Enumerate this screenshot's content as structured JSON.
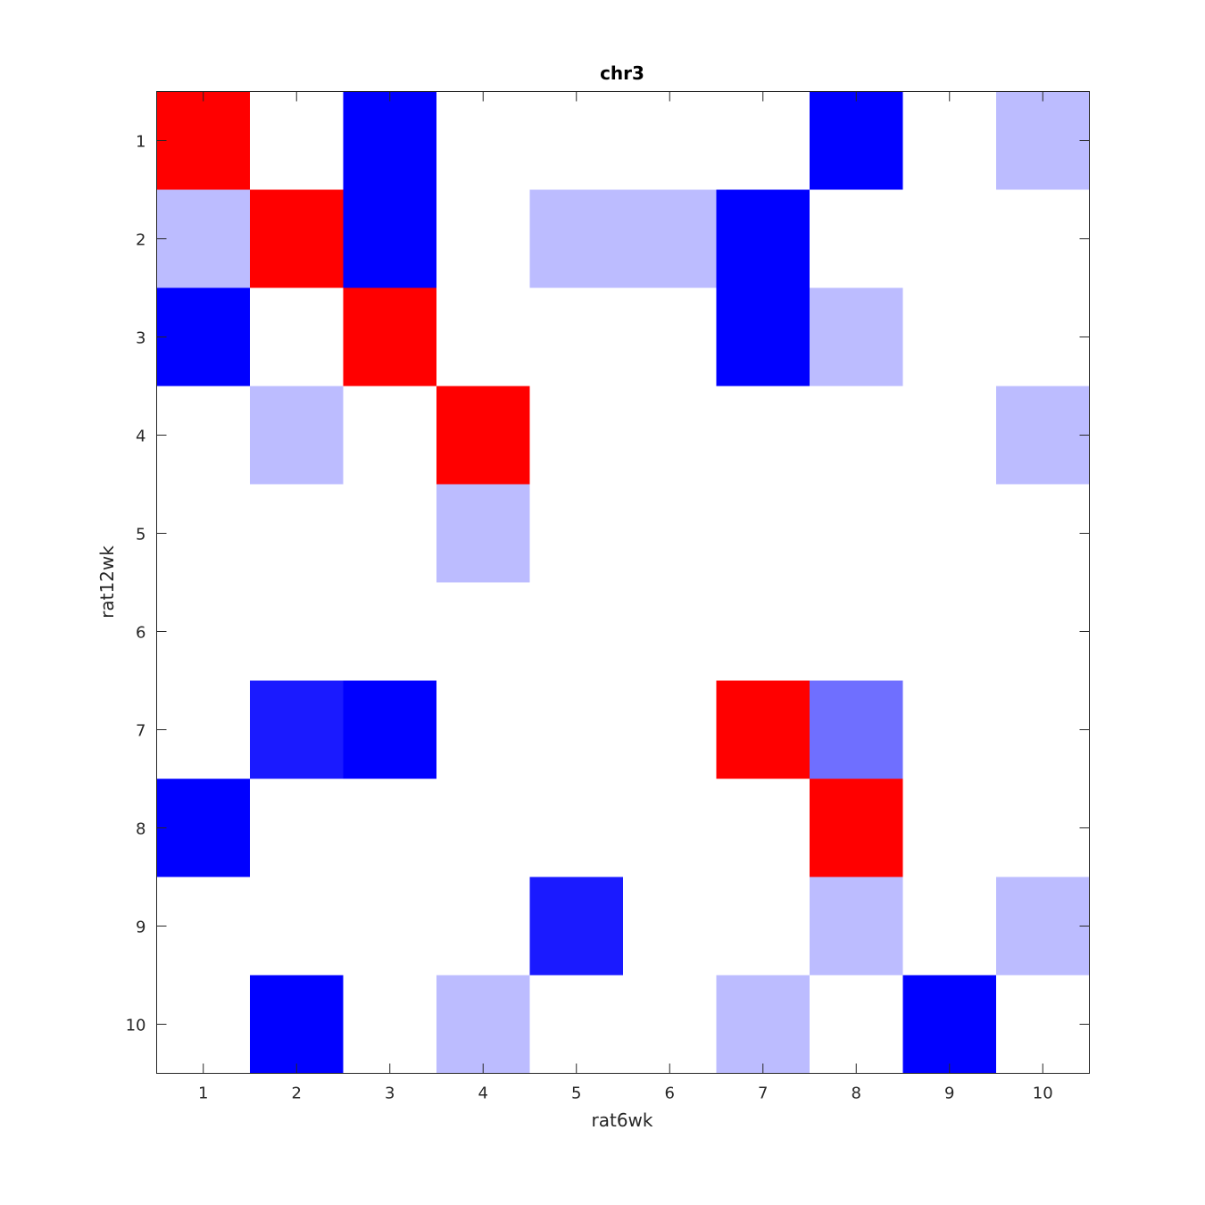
{
  "chart_data": {
    "type": "heatmap",
    "title": "chr3",
    "xlabel": "rat6wk",
    "ylabel": "rat12wk",
    "x_categories": [
      "1",
      "2",
      "3",
      "4",
      "5",
      "6",
      "7",
      "8",
      "9",
      "10"
    ],
    "y_categories": [
      "1",
      "2",
      "3",
      "4",
      "5",
      "6",
      "7",
      "8",
      "9",
      "10"
    ],
    "colors": {
      "W": "#ffffff",
      "R": "#ff0000",
      "B": "#0000ff",
      "B2": "#1a1aff",
      "M": "#6f6fff",
      "L": "#bcbcff"
    },
    "cells": [
      [
        "R",
        "W",
        "B",
        "W",
        "W",
        "W",
        "W",
        "B",
        "W",
        "L"
      ],
      [
        "L",
        "R",
        "B",
        "W",
        "L",
        "L",
        "B",
        "W",
        "W",
        "W"
      ],
      [
        "B",
        "W",
        "R",
        "W",
        "W",
        "W",
        "B",
        "L",
        "W",
        "W"
      ],
      [
        "W",
        "L",
        "W",
        "R",
        "W",
        "W",
        "W",
        "W",
        "W",
        "L"
      ],
      [
        "W",
        "W",
        "W",
        "L",
        "W",
        "W",
        "W",
        "W",
        "W",
        "W"
      ],
      [
        "W",
        "W",
        "W",
        "W",
        "W",
        "W",
        "W",
        "W",
        "W",
        "W"
      ],
      [
        "W",
        "B2",
        "B",
        "W",
        "W",
        "W",
        "R",
        "M",
        "W",
        "W"
      ],
      [
        "B",
        "W",
        "W",
        "W",
        "W",
        "W",
        "W",
        "R",
        "W",
        "W"
      ],
      [
        "W",
        "W",
        "W",
        "W",
        "B2",
        "W",
        "W",
        "L",
        "W",
        "L"
      ],
      [
        "W",
        "B",
        "W",
        "L",
        "W",
        "W",
        "L",
        "W",
        "B",
        "W"
      ]
    ],
    "grid": false,
    "legend": "none"
  }
}
